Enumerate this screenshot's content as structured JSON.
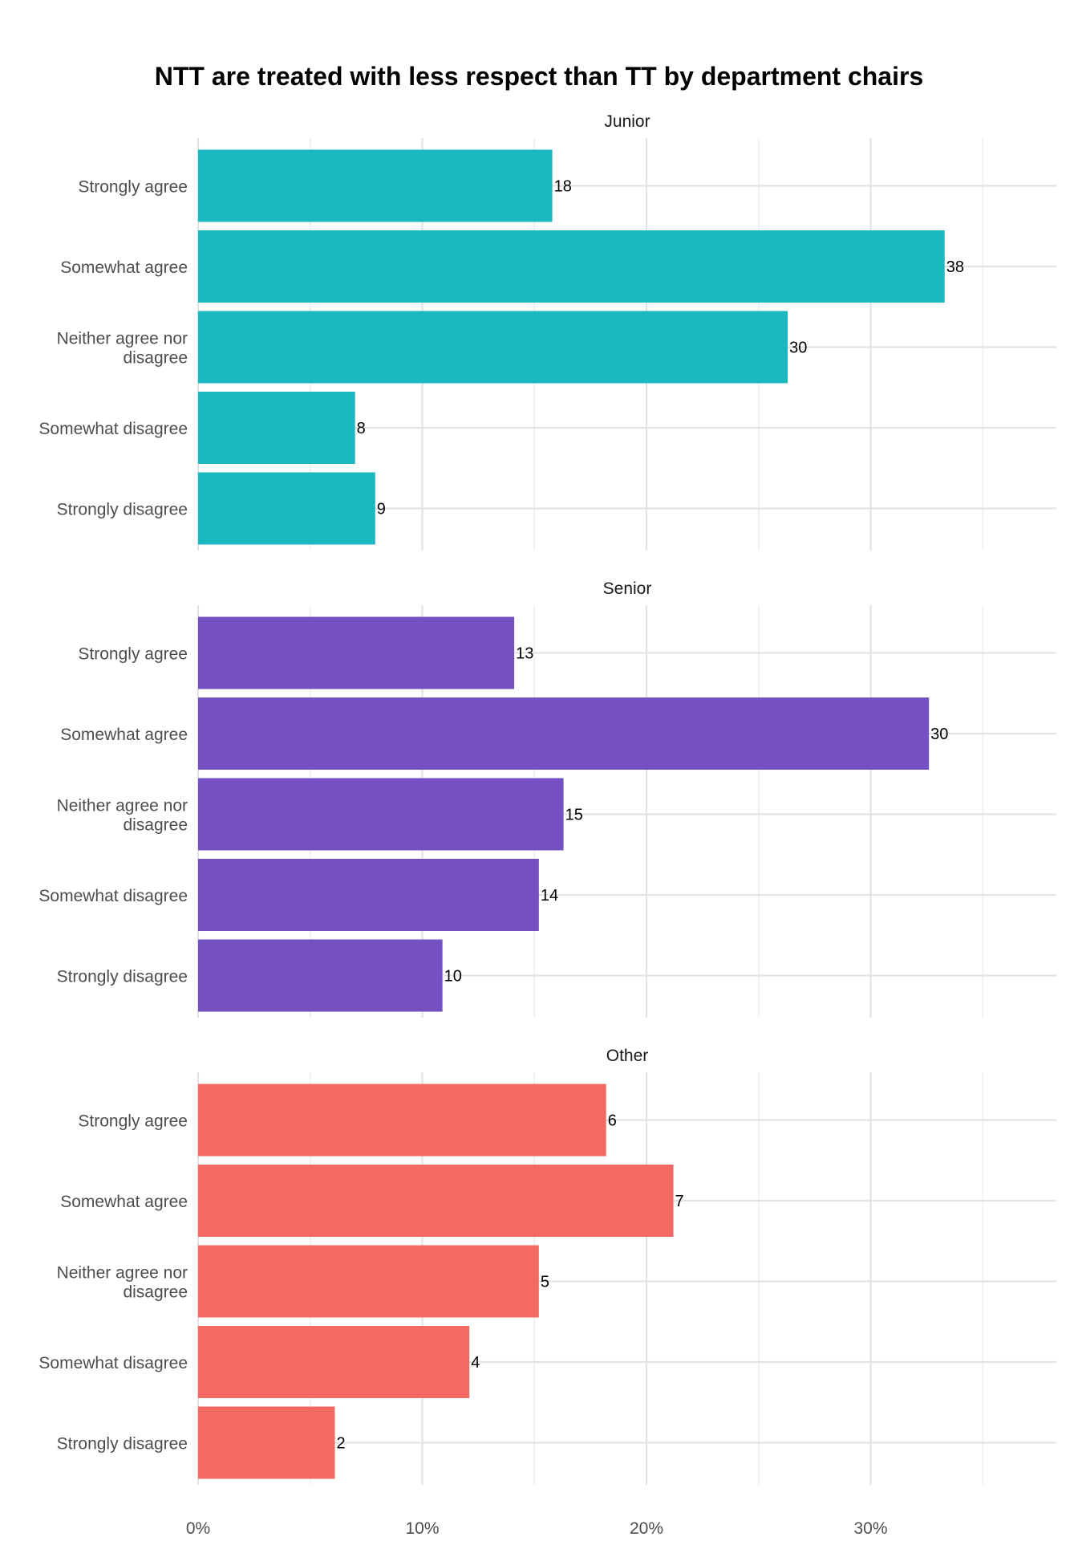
{
  "chart_data": {
    "type": "bar",
    "orientation": "horizontal",
    "title": "NTT are treated with less respect than TT by department chairs",
    "xlabel": "",
    "ylabel": "",
    "x_unit": "percent",
    "xlim": [
      0,
      38
    ],
    "x_ticks": [
      0,
      10,
      20,
      30
    ],
    "x_tick_labels": [
      "0%",
      "10%",
      "20%",
      "30%"
    ],
    "grid": true,
    "legend": "none",
    "categories": [
      [
        "Strongly agree"
      ],
      [
        "Somewhat agree"
      ],
      [
        "Neither agree nor",
        "disagree"
      ],
      [
        "Somewhat disagree"
      ],
      [
        "Strongly disagree"
      ]
    ],
    "facets": [
      {
        "name": "Junior",
        "color": "#1ab9c1",
        "percent": [
          15.8,
          33.3,
          26.3,
          7.0,
          7.9
        ],
        "counts": [
          "18",
          "38",
          "30",
          "8",
          "9"
        ]
      },
      {
        "name": "Senior",
        "color": "#7550c2",
        "percent": [
          14.1,
          32.6,
          16.3,
          15.2,
          10.9
        ],
        "counts": [
          "13",
          "30",
          "15",
          "14",
          "10"
        ]
      },
      {
        "name": "Other",
        "color": "#f46a62",
        "percent": [
          18.2,
          21.2,
          15.2,
          12.1,
          6.1
        ],
        "counts": [
          "6",
          "7",
          "5",
          "4",
          "2"
        ]
      }
    ]
  }
}
